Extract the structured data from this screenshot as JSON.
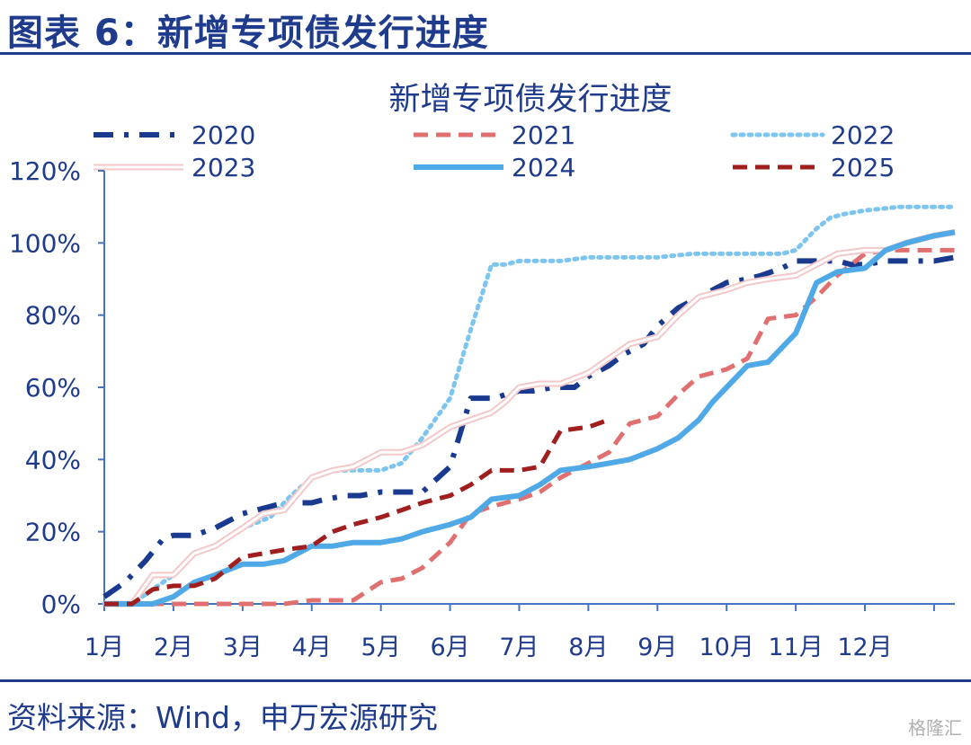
{
  "header": {
    "title": "图表 6：新增专项债发行进度"
  },
  "footer": {
    "source": "资料来源：Wind，申万宏源研究",
    "watermark": "格隆汇"
  },
  "colors": {
    "accent": "#1f3b8c"
  },
  "chart_data": {
    "type": "line",
    "title": "新增专项债发行进度",
    "xlabel": "",
    "ylabel": "",
    "x_ticks": [
      "1月",
      "2月",
      "3月",
      "4月",
      "5月",
      "6月",
      "7月",
      "8月",
      "9月",
      "10月",
      "11月",
      "12月"
    ],
    "y_ticks": [
      "0%",
      "20%",
      "40%",
      "60%",
      "80%",
      "100%",
      "120%"
    ],
    "xlim": [
      0,
      12.3
    ],
    "ylim": [
      0,
      120
    ],
    "grid": false,
    "legend_position": "top",
    "series": [
      {
        "name": "2020",
        "color": "#1a3a8f",
        "style": "dashdot",
        "x": [
          0,
          0.3,
          0.6,
          0.85,
          1,
          1.3,
          1.6,
          2,
          2.2,
          2.4,
          2.6,
          3,
          3.2,
          3.5,
          3.7,
          4,
          4.3,
          4.6,
          5,
          5.3,
          5.5,
          5.65,
          5.8,
          6,
          6.2,
          6.5,
          6.8,
          7,
          7.3,
          7.5,
          7.8,
          8,
          8.3,
          8.6,
          8.8,
          9,
          9.3,
          9.5,
          9.8,
          10,
          10.3,
          10.6,
          10.8,
          11,
          11.3,
          11.6,
          11.8,
          12,
          12.3
        ],
        "y": [
          2,
          6,
          12,
          18,
          19,
          19,
          21,
          25,
          26,
          27,
          28,
          28,
          29,
          30,
          30,
          31,
          31,
          31,
          38,
          57,
          57,
          57,
          58,
          59,
          59,
          60,
          60,
          63,
          66,
          69,
          72,
          77,
          82,
          85,
          87,
          89,
          90,
          91,
          93,
          95,
          95,
          95,
          94,
          94,
          95,
          95,
          95,
          95,
          96
        ]
      },
      {
        "name": "2021",
        "color": "#e07070",
        "style": "dashed",
        "x": [
          0,
          1,
          1.3,
          1.6,
          2,
          2.3,
          2.6,
          3,
          3.3,
          3.6,
          4,
          4.3,
          4.6,
          5,
          5.3,
          5.6,
          6,
          6.3,
          6.6,
          7,
          7.3,
          7.6,
          8,
          8.3,
          8.6,
          9,
          9.3,
          9.6,
          10,
          10.3,
          10.6,
          11,
          11.3,
          11.6,
          12,
          12.3
        ],
        "y": [
          0,
          0,
          0,
          0,
          0,
          0,
          0,
          1,
          1,
          1,
          6,
          7,
          10,
          17,
          25,
          27,
          29,
          31,
          35,
          39,
          42,
          50,
          52,
          58,
          63,
          65,
          68,
          79,
          80,
          85,
          91,
          97,
          98,
          98,
          98,
          98
        ]
      },
      {
        "name": "2022",
        "color": "#7dc5ef",
        "style": "dotted",
        "x": [
          0,
          0.4,
          0.7,
          1,
          1.3,
          1.6,
          2,
          2.4,
          2.7,
          3,
          3.3,
          3.6,
          4,
          4.3,
          4.6,
          5,
          5.3,
          5.6,
          5.8,
          6,
          6.2,
          6.6,
          7,
          7.5,
          8,
          8.5,
          9,
          9.4,
          9.8,
          10,
          10.3,
          10.5,
          10.7,
          11,
          11.5,
          12,
          12.3
        ],
        "y": [
          0,
          0,
          4,
          8,
          14,
          16,
          21,
          24,
          30,
          35,
          37,
          37,
          37,
          39,
          46,
          57,
          76,
          94,
          94,
          95,
          95,
          95,
          96,
          96,
          96,
          97,
          97,
          97,
          97,
          98,
          104,
          107,
          108,
          109,
          110,
          110,
          110
        ]
      },
      {
        "name": "2023",
        "color": "#f2c8c8",
        "style": "double",
        "x": [
          0,
          0.4,
          0.7,
          1,
          1.3,
          1.6,
          2,
          2.3,
          2.6,
          3,
          3.3,
          3.6,
          4,
          4.3,
          4.6,
          5,
          5.3,
          5.6,
          5.8,
          6,
          6.3,
          6.6,
          7,
          7.3,
          7.6,
          8,
          8.3,
          8.6,
          9,
          9.3,
          9.6,
          10,
          10.3,
          10.6,
          11,
          11.3,
          11.6,
          12,
          12.3
        ],
        "y": [
          0,
          0,
          8,
          8,
          14,
          16,
          21,
          25,
          26,
          35,
          37,
          38,
          42,
          42,
          44,
          49,
          51,
          53,
          56,
          60,
          61,
          61,
          64,
          68,
          72,
          74,
          80,
          85,
          87,
          89,
          90,
          91,
          94,
          97,
          98,
          98,
          100,
          102,
          103
        ]
      },
      {
        "name": "2024",
        "color": "#4fa9e6",
        "style": "solid",
        "x": [
          0,
          0.4,
          0.7,
          1,
          1.3,
          1.6,
          2,
          2.3,
          2.6,
          3,
          3.3,
          3.6,
          4,
          4.3,
          4.6,
          5,
          5.3,
          5.6,
          6,
          6.3,
          6.6,
          7,
          7.3,
          7.6,
          8,
          8.3,
          8.6,
          8.8,
          9,
          9.3,
          9.6,
          10,
          10.3,
          10.6,
          11,
          11.3,
          11.6,
          12,
          12.3
        ],
        "y": [
          0,
          0,
          0,
          2,
          6,
          8,
          11,
          11,
          12,
          16,
          16,
          17,
          17,
          18,
          20,
          22,
          24,
          29,
          30,
          33,
          37,
          38,
          39,
          40,
          43,
          46,
          51,
          56,
          60,
          66,
          67,
          75,
          89,
          92,
          93,
          98,
          100,
          102,
          103
        ]
      },
      {
        "name": "2025",
        "color": "#a01e1e",
        "style": "dashed",
        "x": [
          0,
          0.4,
          0.7,
          1,
          1.3,
          1.6,
          2,
          2.3,
          2.6,
          3,
          3.3,
          3.6,
          4,
          4.3,
          4.6,
          5,
          5.3,
          5.6,
          5.8,
          6,
          6.3,
          6.6,
          7,
          7.3
        ],
        "y": [
          0,
          0,
          4,
          5,
          5,
          7,
          13,
          14,
          15,
          16,
          20,
          22,
          24,
          26,
          28,
          30,
          33,
          37,
          37,
          37,
          38,
          48,
          49,
          51
        ]
      }
    ]
  }
}
